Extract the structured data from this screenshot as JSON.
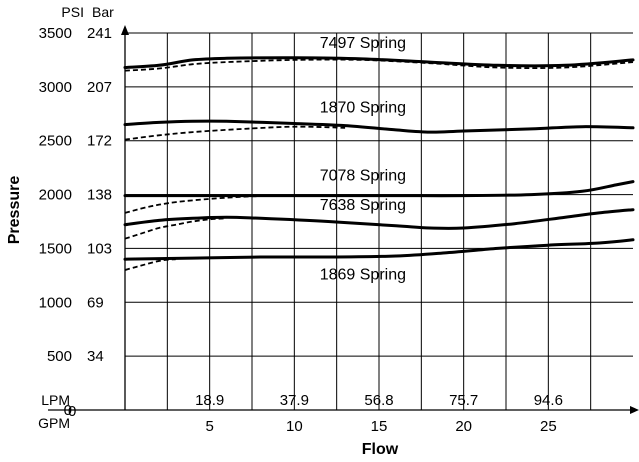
{
  "chart_data": {
    "type": "line",
    "title": "",
    "xlabel": "Flow",
    "ylabel": "Pressure",
    "y_units": {
      "psi_label": "PSI",
      "bar_label": "Bar"
    },
    "x_units": {
      "lpm_label": "LPM",
      "gpm_label": "GPM"
    },
    "x_axis_origin_label": "0",
    "xlim": [
      0,
      30
    ],
    "ylim": [
      0,
      3500
    ],
    "grid": true,
    "psi_ticks": [
      {
        "value": 0,
        "label": "0"
      },
      {
        "value": 500,
        "label": "500"
      },
      {
        "value": 1000,
        "label": "1000"
      },
      {
        "value": 1500,
        "label": "1500"
      },
      {
        "value": 2000,
        "label": "2000"
      },
      {
        "value": 2500,
        "label": "2500"
      },
      {
        "value": 3000,
        "label": "3000"
      },
      {
        "value": 3500,
        "label": "3500"
      }
    ],
    "bar_ticks": [
      {
        "value": 500,
        "label": "34"
      },
      {
        "value": 1000,
        "label": "69"
      },
      {
        "value": 1500,
        "label": "103"
      },
      {
        "value": 2000,
        "label": "138"
      },
      {
        "value": 2500,
        "label": "172"
      },
      {
        "value": 3000,
        "label": "207"
      },
      {
        "value": 3500,
        "label": "241"
      }
    ],
    "gpm_ticks": [
      {
        "value": 5,
        "label": "5"
      },
      {
        "value": 10,
        "label": "10"
      },
      {
        "value": 15,
        "label": "15"
      },
      {
        "value": 20,
        "label": "20"
      },
      {
        "value": 25,
        "label": "25"
      }
    ],
    "lpm_ticks": [
      {
        "value": 5,
        "label": "18.9"
      },
      {
        "value": 10,
        "label": "37.9"
      },
      {
        "value": 15,
        "label": "56.8"
      },
      {
        "value": 20,
        "label": "75.7"
      },
      {
        "value": 25,
        "label": "94.6"
      }
    ],
    "series": [
      {
        "name": "7497 Spring",
        "label_at": [
          11.5,
          3360
        ],
        "solid": [
          [
            0,
            3180
          ],
          [
            2,
            3200
          ],
          [
            4,
            3250
          ],
          [
            6,
            3265
          ],
          [
            10,
            3270
          ],
          [
            14,
            3260
          ],
          [
            18,
            3230
          ],
          [
            22,
            3200
          ],
          [
            26,
            3200
          ],
          [
            30,
            3250
          ]
        ],
        "dashed": [
          [
            0,
            3150
          ],
          [
            2,
            3170
          ],
          [
            4,
            3210
          ],
          [
            6,
            3230
          ],
          [
            10,
            3250
          ],
          [
            14,
            3250
          ],
          [
            18,
            3220
          ],
          [
            22,
            3180
          ],
          [
            26,
            3180
          ],
          [
            30,
            3230
          ]
        ]
      },
      {
        "name": "1870 Spring",
        "label_at": [
          11.5,
          2760
        ],
        "solid": [
          [
            0,
            2650
          ],
          [
            2,
            2670
          ],
          [
            4,
            2680
          ],
          [
            6,
            2680
          ],
          [
            10,
            2660
          ],
          [
            13,
            2640
          ],
          [
            16,
            2600
          ],
          [
            18,
            2580
          ],
          [
            20,
            2590
          ],
          [
            24,
            2610
          ],
          [
            27,
            2630
          ],
          [
            30,
            2620
          ]
        ],
        "dashed": [
          [
            0,
            2510
          ],
          [
            2,
            2550
          ],
          [
            4,
            2580
          ],
          [
            7,
            2610
          ],
          [
            10,
            2630
          ],
          [
            13,
            2620
          ]
        ]
      },
      {
        "name": "7078 Spring",
        "label_at": [
          11.5,
          2130
        ],
        "solid": [
          [
            0,
            1990
          ],
          [
            4,
            1990
          ],
          [
            8,
            1990
          ],
          [
            12,
            1990
          ],
          [
            16,
            1990
          ],
          [
            20,
            1990
          ],
          [
            24,
            2000
          ],
          [
            27,
            2030
          ],
          [
            29,
            2090
          ],
          [
            30,
            2120
          ]
        ],
        "dashed": [
          [
            0,
            1830
          ],
          [
            1.5,
            1890
          ],
          [
            3,
            1930
          ],
          [
            5,
            1960
          ],
          [
            7,
            1980
          ],
          [
            9,
            1990
          ]
        ]
      },
      {
        "name": "7638 Spring",
        "label_at": [
          11.5,
          1855
        ],
        "solid": [
          [
            0,
            1720
          ],
          [
            2,
            1760
          ],
          [
            4,
            1780
          ],
          [
            6,
            1790
          ],
          [
            8,
            1780
          ],
          [
            12,
            1750
          ],
          [
            16,
            1710
          ],
          [
            18,
            1690
          ],
          [
            20,
            1690
          ],
          [
            23,
            1730
          ],
          [
            26,
            1790
          ],
          [
            28,
            1830
          ],
          [
            30,
            1860
          ]
        ],
        "dashed": [
          [
            0,
            1590
          ],
          [
            1,
            1640
          ],
          [
            2,
            1690
          ],
          [
            3,
            1720
          ],
          [
            4,
            1750
          ],
          [
            5,
            1770
          ],
          [
            6,
            1780
          ]
        ]
      },
      {
        "name": "1869 Spring",
        "label_at": [
          11.5,
          1210
        ],
        "solid": [
          [
            0,
            1400
          ],
          [
            4,
            1410
          ],
          [
            8,
            1420
          ],
          [
            12,
            1420
          ],
          [
            16,
            1430
          ],
          [
            19,
            1460
          ],
          [
            22,
            1500
          ],
          [
            25,
            1530
          ],
          [
            28,
            1550
          ],
          [
            30,
            1580
          ]
        ],
        "dashed": [
          [
            0,
            1300
          ],
          [
            0.7,
            1330
          ],
          [
            1.4,
            1360
          ],
          [
            2.2,
            1390
          ],
          [
            3,
            1400
          ]
        ]
      }
    ]
  }
}
